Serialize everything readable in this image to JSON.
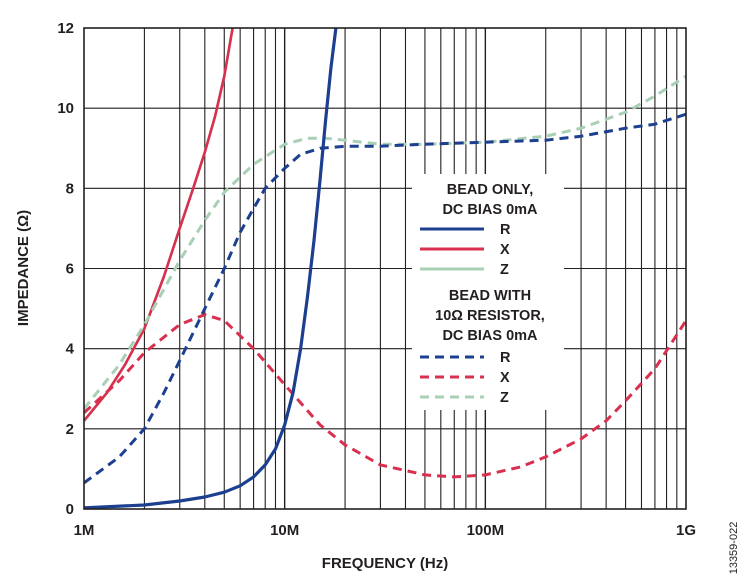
{
  "chart_data": {
    "type": "line",
    "xlabel": "FREQUENCY (Hz)",
    "ylabel": "IMPEDANCE (Ω)",
    "x_scale": "log",
    "xlim": [
      1000000,
      1000000000
    ],
    "ylim": [
      0,
      12
    ],
    "grid": true,
    "x_ticks": [
      {
        "value": 1000000,
        "label": "1M"
      },
      {
        "value": 10000000,
        "label": "10M"
      },
      {
        "value": 100000000,
        "label": "100M"
      },
      {
        "value": 1000000000,
        "label": "1G"
      }
    ],
    "y_ticks": [
      0,
      2,
      4,
      6,
      8,
      10,
      12
    ],
    "legend": {
      "position": "center-right",
      "group1_title": [
        "BEAD ONLY,",
        "DC BIAS 0mA"
      ],
      "group2_title": [
        "BEAD WITH",
        "10Ω RESISTOR,",
        "DC BIAS 0mA"
      ]
    },
    "series": [
      {
        "name": "R",
        "group": "BEAD ONLY, DC BIAS 0mA",
        "style": "solid",
        "color": "#1c3f8f",
        "x": [
          1000000,
          2000000,
          3000000,
          4000000,
          5000000,
          6000000,
          7000000,
          8000000,
          9000000,
          10000000,
          11000000,
          12000000,
          13000000,
          14000000,
          15000000,
          16000000,
          17000000,
          18000000
        ],
        "y": [
          0.03,
          0.1,
          0.2,
          0.3,
          0.42,
          0.58,
          0.8,
          1.1,
          1.5,
          2.1,
          2.9,
          4.0,
          5.3,
          6.7,
          8.2,
          9.7,
          11.0,
          12.0
        ]
      },
      {
        "name": "X",
        "group": "BEAD ONLY, DC BIAS 0mA",
        "style": "solid",
        "color": "#d9304f",
        "x": [
          1000000,
          1300000,
          1600000,
          2000000,
          2500000,
          3000000,
          3500000,
          4000000,
          4500000,
          5000000,
          5500000
        ],
        "y": [
          2.2,
          2.9,
          3.6,
          4.5,
          5.8,
          7.0,
          8.0,
          8.9,
          9.8,
          10.8,
          12.0
        ]
      },
      {
        "name": "Z",
        "group": "BEAD ONLY, DC BIAS 0mA",
        "style": "solid",
        "color": "#a9cfb5",
        "x": [
          1000000,
          1300000,
          1600000,
          2000000,
          2500000,
          3000000,
          3500000,
          4000000,
          4500000,
          5000000,
          5500000
        ],
        "y": [
          2.2,
          2.9,
          3.6,
          4.5,
          5.8,
          7.0,
          8.0,
          8.9,
          9.8,
          10.8,
          12.0
        ]
      },
      {
        "name": "R",
        "group": "BEAD WITH 10Ω RESISTOR, DC BIAS 0mA",
        "style": "dashed",
        "color": "#1c3f8f",
        "x": [
          1000000,
          1500000,
          2000000,
          2500000,
          3000000,
          4000000,
          5000000,
          6000000,
          7000000,
          8000000,
          10000000,
          12000000,
          15000000,
          20000000,
          30000000,
          50000000,
          100000000,
          200000000,
          300000000,
          500000000,
          700000000,
          1000000000
        ],
        "y": [
          0.65,
          1.3,
          2.0,
          2.9,
          3.7,
          5.0,
          6.0,
          6.9,
          7.5,
          8.0,
          8.5,
          8.85,
          9.0,
          9.05,
          9.05,
          9.1,
          9.15,
          9.2,
          9.3,
          9.5,
          9.6,
          9.85
        ]
      },
      {
        "name": "X",
        "group": "BEAD WITH 10Ω RESISTOR, DC BIAS 0mA",
        "style": "dashed",
        "color": "#d9304f",
        "x": [
          1000000,
          1500000,
          2000000,
          3000000,
          4000000,
          5000000,
          7000000,
          10000000,
          15000000,
          20000000,
          30000000,
          50000000,
          70000000,
          100000000,
          150000000,
          200000000,
          300000000,
          400000000,
          500000000,
          700000000,
          1000000000
        ],
        "y": [
          2.4,
          3.2,
          3.9,
          4.6,
          4.85,
          4.7,
          4.0,
          3.1,
          2.1,
          1.6,
          1.1,
          0.85,
          0.8,
          0.85,
          1.05,
          1.3,
          1.75,
          2.2,
          2.7,
          3.5,
          4.7
        ]
      },
      {
        "name": "Z",
        "group": "BEAD WITH 10Ω RESISTOR, DC BIAS 0mA",
        "style": "dashed",
        "color": "#a9cfb5",
        "x": [
          1000000,
          1500000,
          2000000,
          3000000,
          4000000,
          5000000,
          7000000,
          10000000,
          13000000,
          16000000,
          20000000,
          30000000,
          50000000,
          100000000,
          200000000,
          300000000,
          500000000,
          700000000,
          1000000000
        ],
        "y": [
          2.5,
          3.6,
          4.6,
          6.2,
          7.2,
          7.9,
          8.6,
          9.1,
          9.25,
          9.25,
          9.2,
          9.1,
          9.1,
          9.15,
          9.3,
          9.5,
          9.9,
          10.3,
          10.8
        ]
      }
    ],
    "figure_id": "13359-022"
  }
}
